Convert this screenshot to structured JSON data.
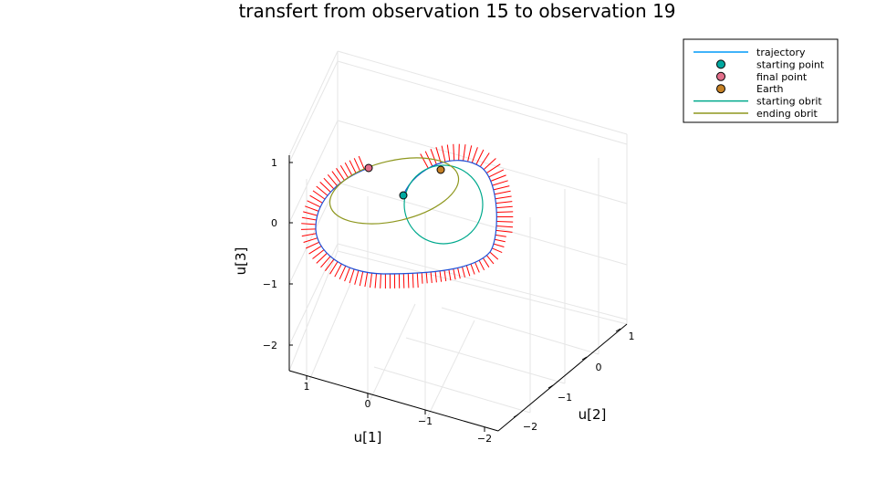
{
  "chart_data": {
    "type": "line",
    "title": "transfert from observation 15 to observation 19",
    "axes": {
      "x": {
        "label": "u[1]",
        "ticks": [
          "1",
          "0",
          "−1",
          "−2"
        ]
      },
      "y": {
        "label": "u[2]",
        "ticks": [
          "−2",
          "−1",
          "0",
          "1"
        ]
      },
      "z": {
        "label": "u[3]",
        "ticks": [
          "1",
          "0",
          "−1",
          "−2"
        ]
      }
    },
    "legend": {
      "placement": "top-right",
      "entries": [
        {
          "label": "trajectory",
          "kind": "line",
          "color": "#009af9"
        },
        {
          "label": "starting point",
          "kind": "marker",
          "color": "#00a8a0"
        },
        {
          "label": "final point",
          "kind": "marker",
          "color": "#e26f8a"
        },
        {
          "label": "Earth",
          "kind": "marker",
          "color": "#c68125"
        },
        {
          "label": "starting obrit",
          "kind": "line",
          "color": "#00a98d"
        },
        {
          "label": "ending obrit",
          "kind": "line",
          "color": "#8e971e"
        }
      ]
    },
    "grid": true,
    "control_arrows_color": "#ff0000",
    "series": [
      {
        "name": "trajectory",
        "kind": "3d-curve"
      },
      {
        "name": "starting obrit",
        "kind": "3d-curve"
      },
      {
        "name": "ending obrit",
        "kind": "3d-curve"
      }
    ],
    "points": [
      {
        "name": "starting point"
      },
      {
        "name": "final point"
      },
      {
        "name": "Earth"
      }
    ]
  }
}
